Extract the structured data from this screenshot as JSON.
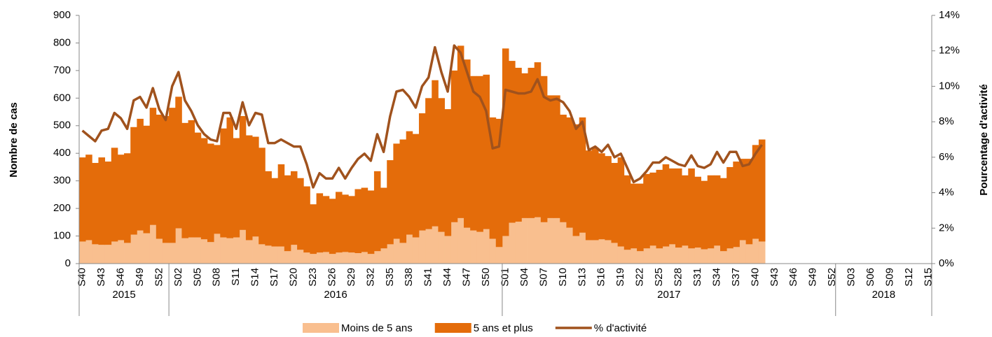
{
  "chart_data": {
    "type": "bar-line",
    "y_title": "Nombre de cas",
    "y2_title": "Pourcentage d'activité",
    "ylim": [
      0,
      900
    ],
    "yticks": [
      0,
      100,
      200,
      300,
      400,
      500,
      600,
      700,
      800,
      900
    ],
    "y2lim": [
      0,
      14
    ],
    "y2ticks": [
      {
        "value": 0,
        "label": "0%"
      },
      {
        "value": 2,
        "label": "2%"
      },
      {
        "value": 4,
        "label": "4%"
      },
      {
        "value": 6,
        "label": "6%"
      },
      {
        "value": 8,
        "label": "8%"
      },
      {
        "value": 10,
        "label": "10%"
      },
      {
        "value": 12,
        "label": "12%"
      },
      {
        "value": 14,
        "label": "14%"
      }
    ],
    "categories": [
      "S40",
      null,
      null,
      "S43",
      null,
      null,
      "S46",
      null,
      null,
      "S49",
      null,
      null,
      "S52",
      null,
      null,
      "S02",
      null,
      null,
      "S05",
      null,
      null,
      "S08",
      null,
      null,
      "S11",
      null,
      null,
      "S14",
      null,
      null,
      "S17",
      null,
      null,
      "S20",
      null,
      null,
      "S23",
      null,
      null,
      "S26",
      null,
      null,
      "S29",
      null,
      null,
      "S32",
      null,
      null,
      "S35",
      null,
      null,
      "S38",
      null,
      null,
      "S41",
      null,
      null,
      "S44",
      null,
      null,
      "S47",
      null,
      null,
      "S50",
      null,
      null,
      "S01",
      null,
      null,
      "S04",
      null,
      null,
      "S07",
      null,
      null,
      "S10",
      null,
      null,
      "S13",
      null,
      null,
      "S16",
      null,
      null,
      "S19",
      null,
      null,
      "S22",
      null,
      null,
      "S25",
      null,
      null,
      "S28",
      null,
      null,
      "S31",
      null,
      null,
      "S34",
      null,
      null,
      "S37",
      null,
      null,
      "S40",
      null,
      null,
      "S43",
      null,
      null,
      "S46",
      null,
      null,
      "S49",
      null,
      null,
      "S52",
      null,
      null,
      "S03",
      null,
      null,
      "S06",
      null,
      null,
      "S09",
      null,
      null,
      "S12",
      null,
      null,
      "S15"
    ],
    "groups": [
      {
        "label": "2015",
        "n": 14
      },
      {
        "label": "2016",
        "n": 52
      },
      {
        "label": "2017",
        "n": 52
      },
      {
        "label": "2018",
        "n": 15
      }
    ],
    "series": [
      {
        "name": "Moins de 5 ans",
        "kind": "bar",
        "color": "#f9bf8f",
        "values": [
          80,
          85,
          70,
          68,
          68,
          80,
          85,
          75,
          105,
          120,
          110,
          140,
          90,
          75,
          75,
          128,
          92,
          95,
          95,
          88,
          78,
          108,
          95,
          92,
          95,
          122,
          85,
          98,
          70,
          65,
          62,
          62,
          45,
          68,
          50,
          40,
          35,
          40,
          42,
          35,
          40,
          42,
          40,
          38,
          42,
          35,
          45,
          55,
          70,
          90,
          75,
          105,
          95,
          120,
          125,
          135,
          115,
          100,
          150,
          165,
          130,
          120,
          115,
          125,
          90,
          60,
          100,
          148,
          152,
          165,
          165,
          168,
          150,
          165,
          165,
          150,
          130,
          100,
          112,
          85,
          85,
          88,
          85,
          75,
          62,
          50,
          55,
          45,
          55,
          65,
          55,
          62,
          70,
          58,
          65,
          55,
          58,
          52,
          55,
          65,
          45,
          55,
          60,
          85,
          70,
          90,
          80,
          null,
          null,
          null,
          null,
          null,
          null,
          null,
          null,
          null,
          null,
          null,
          null,
          null,
          null,
          null,
          null,
          null,
          null,
          null,
          null,
          null,
          null,
          null,
          null,
          null,
          null
        ]
      },
      {
        "name": "5 ans et plus",
        "kind": "bar",
        "color": "#e46c0a",
        "values": [
          305,
          310,
          295,
          317,
          302,
          340,
          310,
          325,
          390,
          405,
          390,
          425,
          450,
          460,
          490,
          477,
          418,
          425,
          380,
          367,
          357,
          322,
          395,
          438,
          360,
          413,
          380,
          362,
          350,
          270,
          248,
          298,
          275,
          267,
          260,
          240,
          180,
          215,
          203,
          200,
          220,
          208,
          205,
          232,
          233,
          230,
          290,
          220,
          305,
          345,
          375,
          375,
          375,
          425,
          475,
          530,
          485,
          460,
          550,
          625,
          610,
          560,
          565,
          560,
          440,
          465,
          680,
          587,
          558,
          525,
          545,
          562,
          530,
          445,
          445,
          390,
          400,
          405,
          418,
          325,
          335,
          312,
          305,
          290,
          323,
          270,
          235,
          245,
          270,
          265,
          285,
          298,
          275,
          287,
          255,
          290,
          257,
          248,
          265,
          255,
          265,
          295,
          310,
          295,
          310,
          340,
          370,
          null,
          null,
          null,
          null,
          null,
          null,
          null,
          null,
          null,
          null,
          null,
          null,
          null,
          null,
          null,
          null,
          null,
          null,
          null,
          null,
          null,
          null,
          null,
          null,
          null,
          null
        ]
      },
      {
        "name": "% d'activité",
        "kind": "line",
        "axis": "y2",
        "color": "#a0521d",
        "values": [
          7.5,
          7.2,
          6.9,
          7.5,
          7.6,
          8.5,
          8.2,
          7.6,
          9.2,
          9.4,
          8.8,
          9.9,
          8.7,
          8.1,
          10.0,
          10.8,
          9.2,
          8.6,
          7.8,
          7.3,
          7.0,
          6.9,
          8.5,
          8.5,
          7.6,
          9.1,
          7.8,
          8.5,
          8.4,
          6.8,
          6.8,
          7.0,
          6.8,
          6.6,
          6.6,
          5.6,
          4.3,
          5.1,
          4.8,
          4.8,
          5.4,
          4.8,
          5.4,
          5.9,
          6.2,
          5.8,
          7.3,
          6.3,
          8.3,
          9.7,
          9.8,
          9.4,
          8.8,
          10.0,
          10.5,
          12.2,
          10.8,
          9.7,
          12.3,
          11.9,
          10.8,
          9.7,
          9.4,
          8.6,
          6.5,
          6.6,
          9.8,
          9.7,
          9.6,
          9.6,
          9.7,
          10.4,
          9.4,
          9.2,
          9.3,
          9.1,
          8.6,
          7.6,
          8.0,
          6.4,
          6.6,
          6.3,
          6.7,
          6.0,
          6.2,
          5.4,
          4.6,
          4.8,
          5.2,
          5.7,
          5.7,
          6.0,
          5.8,
          5.6,
          5.5,
          6.1,
          5.5,
          5.4,
          5.6,
          6.3,
          5.7,
          6.3,
          6.3,
          5.5,
          5.6,
          6.2,
          6.7,
          null,
          null,
          null,
          null,
          null,
          null,
          null,
          null,
          null,
          null,
          null,
          null,
          null,
          null,
          null,
          null,
          null,
          null,
          null,
          null,
          null,
          null,
          null,
          null,
          null,
          null
        ]
      }
    ]
  }
}
